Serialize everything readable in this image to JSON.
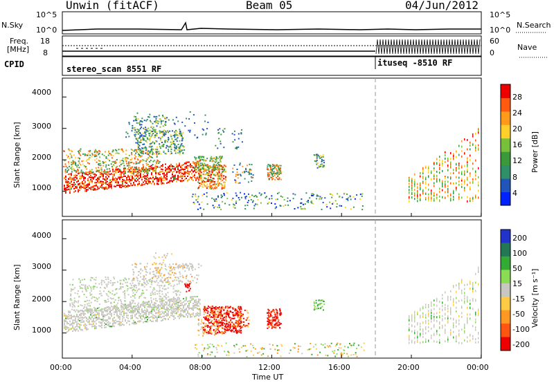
{
  "header": {
    "station": "Unwin (fitACF)",
    "beam": "Beam 05",
    "date": "04/Jun/2012"
  },
  "strips": {
    "left_top_label": "N.Sky",
    "left_top_ticks": [
      "10^5",
      "10^0"
    ],
    "right_top_label": "N.Search",
    "right_top_ticks": [
      "10^5",
      "10^0"
    ],
    "left_mid_label_1": "Freq.",
    "left_mid_label_2": "[MHz]",
    "left_mid_ticks": [
      "18",
      "8"
    ],
    "right_mid_label": "Nave",
    "right_mid_ticks": [
      "60",
      "0"
    ],
    "cpid_label": "CPID",
    "cpid_1": "stereo_scan 8551 RF",
    "cpid_2": "ituseq -8510 RF"
  },
  "chart_data": [
    {
      "type": "heatmap",
      "name": "power",
      "ylabel": "Slant Range [km]",
      "ylim": [
        200,
        4600
      ],
      "yticks": [
        "1000",
        "2000",
        "3000",
        "4000"
      ],
      "colorbar_label": "Power [dB]",
      "colorbar_ticks": [
        "4",
        "8",
        "12",
        "16",
        "20",
        "24",
        "28"
      ],
      "colorbar_colors": [
        "#0022ff",
        "#2255bb",
        "#2f8f66",
        "#3a9a3a",
        "#77c03a",
        "#ffd02a",
        "#ff9a1a",
        "#ff5a10",
        "#ee0000"
      ]
    },
    {
      "type": "heatmap",
      "name": "velocity",
      "ylabel": "Slant Range [km]",
      "ylim": [
        200,
        4600
      ],
      "yticks": [
        "1000",
        "2000",
        "3000",
        "4000"
      ],
      "colorbar_label": "Velocity [m s⁻¹]",
      "colorbar_ticks": [
        "200",
        "100",
        "50",
        "15",
        "-15",
        "-50",
        "-100",
        "-200"
      ],
      "colorbar_colors": [
        "#2233cc",
        "#227755",
        "#33aa33",
        "#88dd55",
        "#c8c8c0",
        "#ffcc44",
        "#ff9922",
        "#ff5511",
        "#ee0000"
      ]
    }
  ],
  "xaxis": {
    "label": "Time UT",
    "ticks": [
      "00:00",
      "04:00",
      "08:00",
      "12:00",
      "16:00",
      "20:00",
      "00:00"
    ]
  }
}
